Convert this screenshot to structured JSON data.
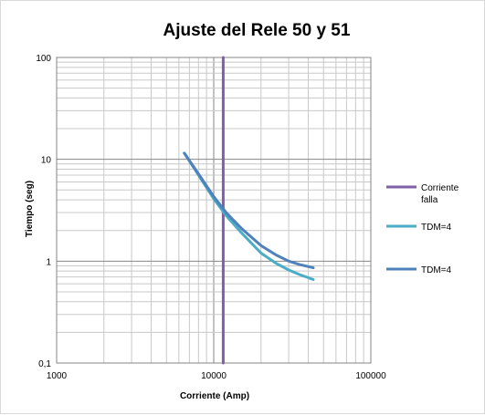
{
  "chart_data": {
    "type": "line",
    "title": "Ajuste del Rele 50 y 51",
    "xlabel": "Corriente (Amp)",
    "ylabel": "Tiempo (seg)",
    "x_scale": "log",
    "y_scale": "log",
    "xlim": [
      1000,
      100000
    ],
    "ylim": [
      0.1,
      100
    ],
    "x_ticks": [
      {
        "value": 1000,
        "label": "1000"
      },
      {
        "value": 10000,
        "label": "10000"
      },
      {
        "value": 100000,
        "label": "100000"
      }
    ],
    "y_ticks": [
      {
        "value": 100,
        "label": "100"
      },
      {
        "value": 10,
        "label": "10"
      },
      {
        "value": 1,
        "label": "1"
      },
      {
        "value": 0.1,
        "label": "0,1"
      }
    ],
    "grid": true,
    "legend_position": "right",
    "series": [
      {
        "name": "Corriente falla",
        "legend_lines": [
          "Corriente",
          "falla"
        ],
        "color": "#7f5fa8",
        "x": [
          11500,
          11500
        ],
        "y": [
          0.1,
          100
        ]
      },
      {
        "name": "TDM=4",
        "legend_lines": [
          "TDM=4"
        ],
        "color": "#4bacc6",
        "x": [
          6500,
          8000,
          10000,
          12000,
          15000,
          20000,
          25000,
          30000,
          35000,
          43000
        ],
        "y": [
          11.5,
          7.0,
          4.1,
          2.8,
          1.9,
          1.2,
          0.95,
          0.82,
          0.74,
          0.66
        ]
      },
      {
        "name": "TDM=4",
        "legend_lines": [
          "TDM=4"
        ],
        "color": "#4f81bd",
        "x": [
          6500,
          8000,
          10000,
          12000,
          15000,
          20000,
          25000,
          30000,
          35000,
          43000
        ],
        "y": [
          11.5,
          7.2,
          4.3,
          3.0,
          2.1,
          1.42,
          1.15,
          1.0,
          0.93,
          0.86
        ]
      }
    ]
  }
}
